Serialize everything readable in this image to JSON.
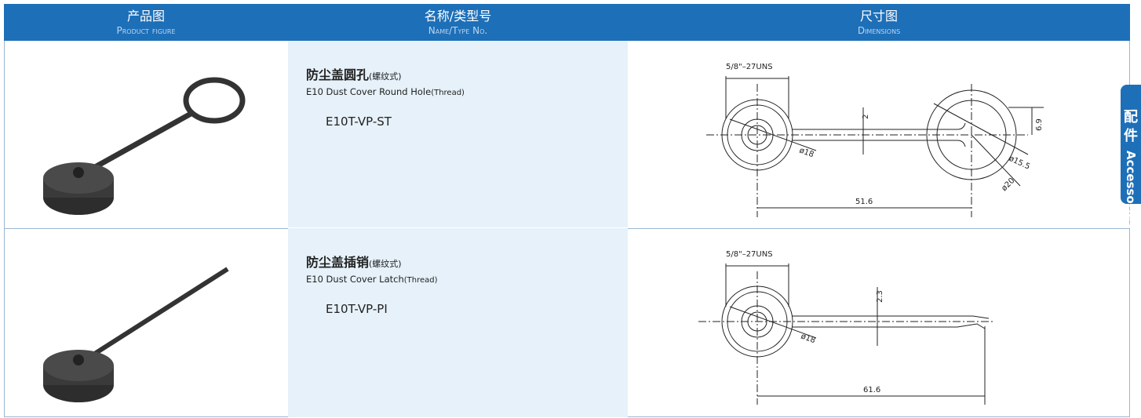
{
  "header": {
    "columns": [
      {
        "zh": "产品图",
        "en": "Product figure"
      },
      {
        "zh": "名称/类型号",
        "en": "Name/Type No."
      },
      {
        "zh": "尺寸图",
        "en": "Dimensions"
      }
    ]
  },
  "side_tab": {
    "zh": "配件",
    "en": "Accessories"
  },
  "rows": [
    {
      "name_zh": "防尘盖圆孔",
      "name_zh_note": "(螺纹式)",
      "name_en": "E10 Dust Cover Round Hole",
      "name_en_note": "(Thread)",
      "model": "E10T-VP-ST",
      "dimensions": {
        "thread": "5/8\"–27UNS",
        "strap": "2",
        "ring_offset": "6.9",
        "cap": "ø18",
        "ring_inner": "ø15.5",
        "ring_outer": "ø20",
        "length": "51.6"
      }
    },
    {
      "name_zh": "防尘盖插销",
      "name_zh_note": "(螺纹式)",
      "name_en": "E10 Dust Cover Latch",
      "name_en_note": "(Thread)",
      "model": "E10T-VP-PI",
      "dimensions": {
        "thread": "5/8\"–27UNS",
        "strap": "2.3",
        "cap": "ø18",
        "length": "61.6"
      }
    }
  ]
}
